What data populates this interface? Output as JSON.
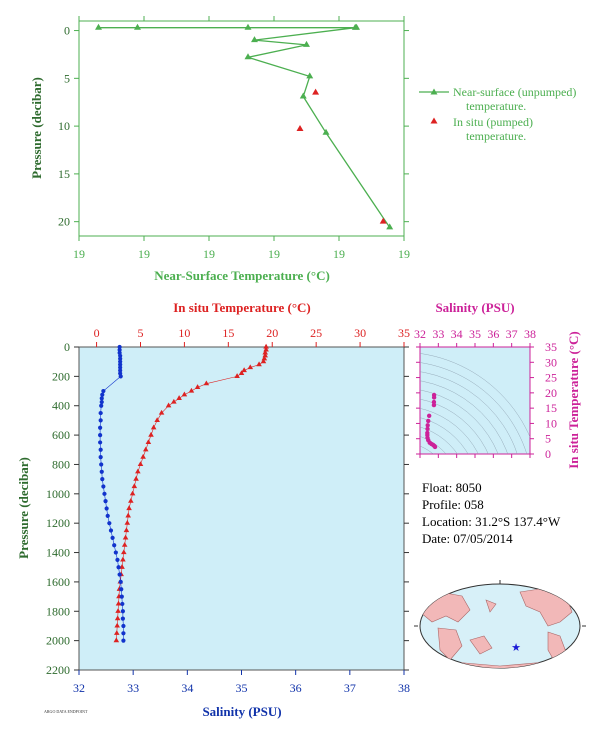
{
  "info": {
    "float": "Float: 8050",
    "profile": "Profile: 058",
    "location": "Location: 31.2°S 137.4°W",
    "date": "Date: 07/05/2014"
  },
  "credit": "ARGO DATA ENDPOINT",
  "chart_data": [
    {
      "type": "line",
      "name": "near-surface",
      "xlabel": "Near-Surface Temperature (°C)",
      "ylabel": "Pressure (decibar)",
      "x_tick_labels": [
        "19",
        "19",
        "19",
        "19",
        "19",
        "19"
      ],
      "xlim": [
        18.7,
        19.2
      ],
      "ylim": [
        21.5,
        -1
      ],
      "y_ticks": [
        0,
        5,
        10,
        15,
        20
      ],
      "legend": [
        "Near-surface (unpumped) temperature.",
        "In situ (pumped) temperature."
      ],
      "legend_position": "right",
      "series": [
        {
          "name": "Near-surface (unpumped) temperature.",
          "color": "#4caf50",
          "marker": "triangle",
          "x": [
            19.127,
            18.73,
            18.79,
            18.96,
            19.125,
            18.97,
            19.05,
            18.96,
            19.055,
            19.045,
            19.08,
            19.178
          ],
          "y": [
            -0.3,
            -0.3,
            -0.3,
            -0.3,
            -0.3,
            1.0,
            1.5,
            2.8,
            4.8,
            6.9,
            10.7,
            20.6
          ]
        },
        {
          "name": "In situ (pumped) temperature.",
          "color": "#dd2222",
          "marker": "triangle",
          "x": [
            19.064,
            19.04,
            19.168
          ],
          "y": [
            6.5,
            10.3,
            20.0
          ]
        }
      ]
    },
    {
      "type": "line",
      "name": "deep-profile",
      "ylabel": "Pressure (decibar)",
      "xlabel_bottom": "Salinity (PSU)",
      "xlabel_top": "In situ Temperature (°C)",
      "ylim": [
        2200,
        0
      ],
      "y_ticks": [
        0,
        200,
        400,
        600,
        800,
        1000,
        1200,
        1400,
        1600,
        1800,
        2000,
        2200
      ],
      "salinity_lim": [
        32,
        38
      ],
      "salinity_ticks": [
        32,
        33,
        34,
        35,
        36,
        37,
        38
      ],
      "temperature_lim": [
        -2,
        35
      ],
      "temperature_ticks": [
        0,
        5,
        10,
        15,
        20,
        25,
        30,
        35
      ],
      "series": [
        {
          "name": "Temperature",
          "color": "#dd2222",
          "marker": "triangle",
          "p": [
            0,
            20,
            40,
            60,
            80,
            100,
            120,
            140,
            160,
            180,
            200,
            250,
            275,
            300,
            325,
            350,
            375,
            400,
            450,
            500,
            550,
            600,
            650,
            700,
            750,
            800,
            850,
            900,
            950,
            1000,
            1050,
            1100,
            1150,
            1200,
            1250,
            1300,
            1350,
            1400,
            1450,
            1500,
            1550,
            1600,
            1650,
            1700,
            1750,
            1800,
            1850,
            1900,
            1950,
            2000
          ],
          "t": [
            19.3,
            19.3,
            19.2,
            19.2,
            19.1,
            19.0,
            18.5,
            17.5,
            16.8,
            16.5,
            16.0,
            12.5,
            11.5,
            10.8,
            10.0,
            9.4,
            8.8,
            8.2,
            7.4,
            6.9,
            6.5,
            6.2,
            5.9,
            5.6,
            5.3,
            5.0,
            4.7,
            4.5,
            4.3,
            4.1,
            3.9,
            3.7,
            3.6,
            3.5,
            3.4,
            3.3,
            3.2,
            3.1,
            3.0,
            2.9,
            2.8,
            2.7,
            2.6,
            2.55,
            2.5,
            2.45,
            2.4,
            2.35,
            2.3,
            2.25
          ]
        },
        {
          "name": "Salinity",
          "color": "#1133cc",
          "marker": "circle",
          "p": [
            0,
            20,
            40,
            60,
            80,
            100,
            120,
            140,
            160,
            180,
            200,
            300,
            325,
            350,
            375,
            400,
            450,
            500,
            550,
            600,
            650,
            700,
            750,
            800,
            850,
            900,
            950,
            1000,
            1050,
            1100,
            1150,
            1200,
            1250,
            1300,
            1350,
            1400,
            1450,
            1500,
            1550,
            1600,
            1650,
            1700,
            1750,
            1800,
            1850,
            1900,
            1950,
            2000
          ],
          "s": [
            32.75,
            32.75,
            32.75,
            32.76,
            32.76,
            32.76,
            32.76,
            32.76,
            32.76,
            32.76,
            32.77,
            32.45,
            32.43,
            32.42,
            32.42,
            32.41,
            32.4,
            32.4,
            32.39,
            32.39,
            32.39,
            32.4,
            32.4,
            32.41,
            32.42,
            32.43,
            32.45,
            32.47,
            32.49,
            32.51,
            32.53,
            32.56,
            32.59,
            32.62,
            32.65,
            32.68,
            32.71,
            32.73,
            32.75,
            32.77,
            32.78,
            32.79,
            32.8,
            32.81,
            32.81,
            32.82,
            32.82,
            32.82
          ]
        }
      ]
    },
    {
      "type": "scatter",
      "name": "ts-diagram",
      "xlabel": "Salinity (PSU)",
      "ylabel": "In situ Temperature (°C)",
      "xlim": [
        32,
        38
      ],
      "ylim": [
        0,
        35
      ],
      "x_ticks": [
        32,
        33,
        34,
        35,
        36,
        37,
        38
      ],
      "y_ticks": [
        0,
        5,
        10,
        15,
        20,
        25,
        30,
        35
      ],
      "color": "#cc2299",
      "points": [
        [
          32.77,
          19.3
        ],
        [
          32.77,
          18.5
        ],
        [
          32.76,
          17.0
        ],
        [
          32.76,
          16.0
        ],
        [
          32.5,
          12.5
        ],
        [
          32.45,
          10.8
        ],
        [
          32.42,
          9.4
        ],
        [
          32.41,
          8.2
        ],
        [
          32.4,
          6.9
        ],
        [
          32.4,
          6.2
        ],
        [
          32.41,
          5.3
        ],
        [
          32.45,
          4.5
        ],
        [
          32.53,
          3.7
        ],
        [
          32.62,
          3.3
        ],
        [
          32.71,
          3.0
        ],
        [
          32.77,
          2.7
        ],
        [
          32.8,
          2.5
        ],
        [
          32.82,
          2.3
        ]
      ]
    }
  ]
}
